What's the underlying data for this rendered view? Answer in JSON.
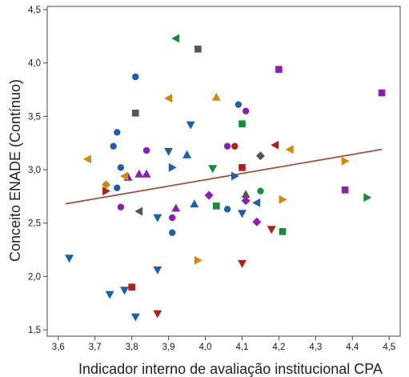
{
  "chart_data": {
    "type": "scatter",
    "xlabel": "Indicador interno de avaliação institucional CPA",
    "ylabel": "Conceito ENADE (Contínuo)",
    "xlim": [
      3.57,
      4.53
    ],
    "ylim": [
      1.44,
      4.53
    ],
    "x_ticks": [
      "3,6",
      "3,7",
      "3,8",
      "3,9",
      "4,0",
      "4,1",
      "4,2",
      "4,3",
      "4,4",
      "4,5"
    ],
    "x_tick_values": [
      3.6,
      3.7,
      3.8,
      3.9,
      4.0,
      4.1,
      4.2,
      4.3,
      4.4,
      4.5
    ],
    "y_ticks": [
      "1,5",
      "2,0",
      "2,5",
      "3,0",
      "3,5",
      "4,0",
      "4,5"
    ],
    "y_tick_values": [
      1.5,
      2.0,
      2.5,
      3.0,
      3.5,
      4.0,
      4.5
    ],
    "grid": false,
    "legend": "none",
    "trend_line": {
      "x": [
        3.62,
        4.48
      ],
      "y": [
        2.68,
        3.19
      ],
      "color": "#a0523d"
    },
    "series": [
      {
        "marker": "circle",
        "color": "#1f5fa8",
        "points": [
          [
            3.81,
            3.87
          ],
          [
            3.76,
            3.35
          ],
          [
            3.75,
            3.22
          ],
          [
            3.77,
            3.02
          ],
          [
            3.76,
            2.83
          ],
          [
            3.91,
            2.41
          ],
          [
            4.06,
            2.63
          ],
          [
            4.09,
            3.61
          ]
        ]
      },
      {
        "marker": "circle",
        "color": "#8a1fb0",
        "points": [
          [
            3.84,
            3.18
          ],
          [
            3.77,
            2.65
          ],
          [
            3.91,
            2.55
          ],
          [
            4.11,
            3.55
          ],
          [
            4.06,
            3.22
          ]
        ]
      },
      {
        "marker": "circle",
        "color": "#1a8a3a",
        "points": [
          [
            4.15,
            2.8
          ]
        ]
      },
      {
        "marker": "circle",
        "color": "#b01f1f",
        "points": [
          [
            4.08,
            3.22
          ]
        ]
      },
      {
        "marker": "triangle-down",
        "color": "#1f5fa8",
        "points": [
          [
            3.63,
            2.17
          ],
          [
            3.74,
            1.83
          ],
          [
            3.78,
            1.87
          ],
          [
            3.81,
            1.62
          ],
          [
            3.87,
            2.06
          ],
          [
            3.87,
            2.55
          ],
          [
            3.96,
            3.42
          ],
          [
            3.9,
            3.17
          ],
          [
            4.1,
            2.59
          ]
        ]
      },
      {
        "marker": "triangle-down",
        "color": "#b01f1f",
        "points": [
          [
            3.87,
            1.65
          ],
          [
            4.1,
            2.12
          ],
          [
            4.18,
            2.44
          ]
        ]
      },
      {
        "marker": "triangle-down",
        "color": "#1a8a3a",
        "points": [
          [
            4.02,
            3.01
          ]
        ]
      },
      {
        "marker": "triangle-up",
        "color": "#8a1fb0",
        "points": [
          [
            3.82,
            2.96
          ],
          [
            3.84,
            2.96
          ],
          [
            3.79,
            2.93
          ],
          [
            3.92,
            2.64
          ]
        ]
      },
      {
        "marker": "triangle-up",
        "color": "#1f5fa8",
        "points": [
          [
            3.95,
            3.14
          ],
          [
            3.97,
            2.68
          ]
        ]
      },
      {
        "marker": "triangle-up",
        "color": "#d08a10",
        "points": [
          [
            4.03,
            3.68
          ]
        ]
      },
      {
        "marker": "triangle-up",
        "color": "#555555",
        "points": [
          [
            4.11,
            2.77
          ]
        ]
      },
      {
        "marker": "triangle-right",
        "color": "#1f5fa8",
        "points": [
          [
            3.91,
            3.02
          ],
          [
            4.08,
            2.94
          ]
        ]
      },
      {
        "marker": "triangle-right",
        "color": "#b01f1f",
        "points": [
          [
            3.73,
            2.8
          ]
        ]
      },
      {
        "marker": "triangle-right",
        "color": "#1a8a3a",
        "points": [
          [
            4.44,
            2.74
          ]
        ]
      },
      {
        "marker": "triangle-right",
        "color": "#d08a10",
        "points": [
          [
            4.21,
            2.72
          ],
          [
            4.38,
            3.08
          ],
          [
            3.98,
            2.15
          ]
        ]
      },
      {
        "marker": "triangle-left",
        "color": "#d08a10",
        "points": [
          [
            3.68,
            3.1
          ],
          [
            3.9,
            3.67
          ],
          [
            3.78,
            2.94
          ],
          [
            4.23,
            3.19
          ]
        ]
      },
      {
        "marker": "triangle-left",
        "color": "#1a8a3a",
        "points": [
          [
            3.92,
            4.23
          ]
        ]
      },
      {
        "marker": "triangle-left",
        "color": "#b01f1f",
        "points": [
          [
            4.19,
            3.23
          ]
        ]
      },
      {
        "marker": "triangle-left",
        "color": "#1f5fa8",
        "points": [
          [
            4.14,
            2.69
          ]
        ]
      },
      {
        "marker": "triangle-left",
        "color": "#555555",
        "points": [
          [
            3.82,
            2.61
          ]
        ]
      },
      {
        "marker": "square",
        "color": "#555555",
        "points": [
          [
            3.98,
            4.13
          ],
          [
            3.81,
            3.53
          ]
        ]
      },
      {
        "marker": "square",
        "color": "#8a1fb0",
        "points": [
          [
            4.2,
            3.94
          ],
          [
            4.48,
            3.72
          ],
          [
            4.38,
            2.81
          ]
        ]
      },
      {
        "marker": "square",
        "color": "#1a8a3a",
        "points": [
          [
            4.1,
            3.43
          ],
          [
            4.03,
            2.66
          ],
          [
            4.21,
            2.42
          ]
        ]
      },
      {
        "marker": "square",
        "color": "#b01f1f",
        "points": [
          [
            4.1,
            3.02
          ],
          [
            3.8,
            1.9
          ]
        ]
      },
      {
        "marker": "diamond",
        "color": "#8a1fb0",
        "points": [
          [
            4.01,
            2.76
          ],
          [
            4.14,
            2.51
          ],
          [
            4.11,
            2.71
          ]
        ]
      },
      {
        "marker": "diamond",
        "color": "#555555",
        "points": [
          [
            4.15,
            3.13
          ]
        ]
      },
      {
        "marker": "diamond",
        "color": "#d08a10",
        "points": [
          [
            3.73,
            2.86
          ]
        ]
      }
    ]
  }
}
